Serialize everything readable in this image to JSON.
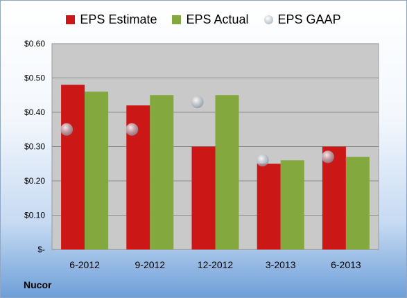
{
  "chart_data": {
    "type": "bar",
    "categories": [
      "6-2012",
      "9-2012",
      "12-2012",
      "3-2013",
      "6-2013"
    ],
    "series": [
      {
        "name": "EPS Estimate",
        "values": [
          0.48,
          0.42,
          0.3,
          0.25,
          0.3
        ],
        "color": "#cc1717"
      },
      {
        "name": "EPS Actual",
        "values": [
          0.46,
          0.45,
          0.45,
          0.26,
          0.27
        ],
        "color": "#82a83e"
      }
    ],
    "markers": {
      "name": "EPS GAAP",
      "values": [
        0.35,
        0.35,
        0.43,
        0.26,
        0.27
      ],
      "color": "#b9c2cc"
    },
    "ylim": [
      0,
      0.6
    ],
    "yticks": [
      0,
      0.1,
      0.2,
      0.3,
      0.4,
      0.5,
      0.6
    ],
    "ytick_labels": [
      "$-",
      "$0.10",
      "$0.20",
      "$0.30",
      "$0.40",
      "$0.50",
      "$0.60"
    ],
    "grid": true,
    "legend": "top"
  },
  "footer": {
    "company": "Nucor"
  }
}
